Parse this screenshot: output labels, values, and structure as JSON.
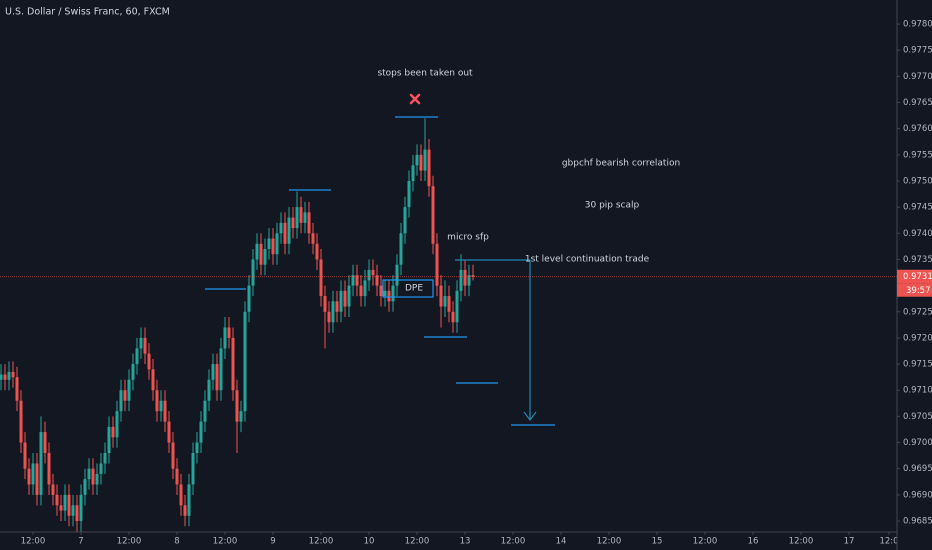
{
  "chart_data": {
    "type": "candlestick",
    "title": "U.S. Dollar / Swiss Franc, 60, FXCM",
    "up_color": "#26a69a",
    "down_color": "#ef5350",
    "candles": [
      [
        0.9712,
        0.9715,
        0.971,
        0.9713
      ],
      [
        0.9713,
        0.9715,
        0.971,
        0.9712
      ],
      [
        0.9712,
        0.97155,
        0.971,
        0.97135
      ],
      [
        0.97135,
        0.97155,
        0.97105,
        0.97125
      ],
      [
        0.97125,
        0.97145,
        0.9706,
        0.9708
      ],
      [
        0.9708,
        0.971,
        0.9698,
        0.97
      ],
      [
        0.97,
        0.9702,
        0.9693,
        0.9695
      ],
      [
        0.9695,
        0.9697,
        0.969,
        0.9692
      ],
      [
        0.9692,
        0.9698,
        0.969,
        0.9696
      ],
      [
        0.9696,
        0.9698,
        0.9688,
        0.969
      ],
      [
        0.969,
        0.9705,
        0.9688,
        0.9702
      ],
      [
        0.9702,
        0.9704,
        0.9696,
        0.9698
      ],
      [
        0.9698,
        0.97,
        0.969,
        0.9692
      ],
      [
        0.9692,
        0.9694,
        0.9688,
        0.969
      ],
      [
        0.969,
        0.9692,
        0.9686,
        0.9688
      ],
      [
        0.9688,
        0.969,
        0.9685,
        0.9687
      ],
      [
        0.9687,
        0.9692,
        0.9685,
        0.969
      ],
      [
        0.969,
        0.9692,
        0.9684,
        0.9686
      ],
      [
        0.9686,
        0.969,
        0.9684,
        0.9688
      ],
      [
        0.9688,
        0.969,
        0.9683,
        0.9685
      ],
      [
        0.9685,
        0.9692,
        0.9683,
        0.969
      ],
      [
        0.969,
        0.9695,
        0.9688,
        0.9693
      ],
      [
        0.9693,
        0.9697,
        0.9691,
        0.9695
      ],
      [
        0.9695,
        0.9697,
        0.969,
        0.9692
      ],
      [
        0.9692,
        0.9696,
        0.969,
        0.9694
      ],
      [
        0.9694,
        0.9698,
        0.9692,
        0.9696
      ],
      [
        0.9696,
        0.97,
        0.9694,
        0.9698
      ],
      [
        0.9698,
        0.9705,
        0.9696,
        0.9703
      ],
      [
        0.9703,
        0.9705,
        0.9699,
        0.9701
      ],
      [
        0.9701,
        0.9708,
        0.9699,
        0.9706
      ],
      [
        0.9706,
        0.9712,
        0.9704,
        0.971
      ],
      [
        0.971,
        0.9712,
        0.9706,
        0.9708
      ],
      [
        0.9708,
        0.9714,
        0.9706,
        0.9712
      ],
      [
        0.9712,
        0.9717,
        0.971,
        0.9715
      ],
      [
        0.9715,
        0.972,
        0.9713,
        0.9718
      ],
      [
        0.9718,
        0.9722,
        0.9716,
        0.972
      ],
      [
        0.972,
        0.9722,
        0.9715,
        0.9717
      ],
      [
        0.9717,
        0.9719,
        0.9712,
        0.9714
      ],
      [
        0.9714,
        0.9716,
        0.9708,
        0.971
      ],
      [
        0.971,
        0.9712,
        0.9704,
        0.9706
      ],
      [
        0.9706,
        0.971,
        0.9704,
        0.9708
      ],
      [
        0.9708,
        0.971,
        0.9702,
        0.9704
      ],
      [
        0.9704,
        0.9706,
        0.9698,
        0.97
      ],
      [
        0.97,
        0.9702,
        0.9693,
        0.9695
      ],
      [
        0.9695,
        0.9697,
        0.969,
        0.9692
      ],
      [
        0.9692,
        0.9694,
        0.9686,
        0.9688
      ],
      [
        0.9688,
        0.969,
        0.9684,
        0.9686
      ],
      [
        0.9686,
        0.9694,
        0.9684,
        0.9692
      ],
      [
        0.9692,
        0.97,
        0.969,
        0.9698
      ],
      [
        0.9698,
        0.9702,
        0.9696,
        0.97
      ],
      [
        0.97,
        0.9706,
        0.9698,
        0.9704
      ],
      [
        0.9704,
        0.971,
        0.9702,
        0.9708
      ],
      [
        0.9708,
        0.9714,
        0.9706,
        0.9712
      ],
      [
        0.9712,
        0.9717,
        0.971,
        0.9715
      ],
      [
        0.9715,
        0.9717,
        0.9708,
        0.971
      ],
      [
        0.971,
        0.972,
        0.9708,
        0.9718
      ],
      [
        0.9718,
        0.9724,
        0.9716,
        0.9722
      ],
      [
        0.9722,
        0.9724,
        0.9718,
        0.972
      ],
      [
        0.972,
        0.9722,
        0.9708,
        0.971
      ],
      [
        0.971,
        0.9712,
        0.9698,
        0.9704
      ],
      [
        0.9704,
        0.9708,
        0.9702,
        0.9706
      ],
      [
        0.9706,
        0.9727,
        0.9704,
        0.9725
      ],
      [
        0.9725,
        0.9732,
        0.9723,
        0.973
      ],
      [
        0.973,
        0.9737,
        0.9728,
        0.9735
      ],
      [
        0.9735,
        0.974,
        0.9733,
        0.9738
      ],
      [
        0.9738,
        0.974,
        0.9732,
        0.9734
      ],
      [
        0.9734,
        0.9739,
        0.9732,
        0.9737
      ],
      [
        0.9737,
        0.9741,
        0.9735,
        0.9739
      ],
      [
        0.9739,
        0.9741,
        0.9734,
        0.9736
      ],
      [
        0.9736,
        0.9742,
        0.9734,
        0.974
      ],
      [
        0.974,
        0.9744,
        0.9738,
        0.9742
      ],
      [
        0.9742,
        0.9744,
        0.9736,
        0.9738
      ],
      [
        0.9738,
        0.9745,
        0.9736,
        0.9743
      ],
      [
        0.9743,
        0.9745,
        0.9739,
        0.9741
      ],
      [
        0.9741,
        0.9748,
        0.9739,
        0.9745
      ],
      [
        0.9745,
        0.9747,
        0.974,
        0.9742
      ],
      [
        0.9742,
        0.9746,
        0.974,
        0.9744
      ],
      [
        0.9744,
        0.9746,
        0.9738,
        0.974
      ],
      [
        0.974,
        0.9742,
        0.9736,
        0.9738
      ],
      [
        0.9738,
        0.974,
        0.9733,
        0.9735
      ],
      [
        0.9735,
        0.9737,
        0.9726,
        0.9728
      ],
      [
        0.9728,
        0.973,
        0.9718,
        0.9725
      ],
      [
        0.9725,
        0.9727,
        0.9721,
        0.9723
      ],
      [
        0.9723,
        0.9729,
        0.9721,
        0.9727
      ],
      [
        0.9727,
        0.9729,
        0.9723,
        0.9725
      ],
      [
        0.9725,
        0.9731,
        0.9723,
        0.9729
      ],
      [
        0.9729,
        0.9731,
        0.9724,
        0.9726
      ],
      [
        0.9726,
        0.9732,
        0.9724,
        0.973
      ],
      [
        0.973,
        0.9734,
        0.9728,
        0.9732
      ],
      [
        0.9732,
        0.9734,
        0.9728,
        0.973
      ],
      [
        0.973,
        0.9732,
        0.9726,
        0.9728
      ],
      [
        0.9728,
        0.9733,
        0.9726,
        0.9731
      ],
      [
        0.9731,
        0.9735,
        0.9729,
        0.9733
      ],
      [
        0.9733,
        0.9735,
        0.973,
        0.9732
      ],
      [
        0.9732,
        0.9734,
        0.9728,
        0.973
      ],
      [
        0.973,
        0.9732,
        0.9726,
        0.9728
      ],
      [
        0.9728,
        0.9731,
        0.9726,
        0.9729
      ],
      [
        0.9729,
        0.9731,
        0.9725,
        0.9727
      ],
      [
        0.9727,
        0.9732,
        0.9725,
        0.973
      ],
      [
        0.973,
        0.9736,
        0.9728,
        0.9734
      ],
      [
        0.9734,
        0.9742,
        0.9732,
        0.974
      ],
      [
        0.974,
        0.9747,
        0.9738,
        0.9745
      ],
      [
        0.9745,
        0.9752,
        0.9743,
        0.975
      ],
      [
        0.975,
        0.9755,
        0.9748,
        0.9753
      ],
      [
        0.9753,
        0.9757,
        0.9751,
        0.9755
      ],
      [
        0.9755,
        0.9757,
        0.975,
        0.9752
      ],
      [
        0.9752,
        0.9762,
        0.975,
        0.9756
      ],
      [
        0.9756,
        0.9758,
        0.9747,
        0.9749
      ],
      [
        0.9749,
        0.9751,
        0.9736,
        0.9738
      ],
      [
        0.9738,
        0.974,
        0.9728,
        0.973
      ],
      [
        0.973,
        0.9732,
        0.9722,
        0.9726
      ],
      [
        0.9726,
        0.9731,
        0.9724,
        0.9728
      ],
      [
        0.9728,
        0.973,
        0.9723,
        0.9725
      ],
      [
        0.9725,
        0.9727,
        0.9721,
        0.9723
      ],
      [
        0.9723,
        0.9731,
        0.9721,
        0.9729
      ],
      [
        0.9729,
        0.9736,
        0.9727,
        0.9733
      ],
      [
        0.9733,
        0.9735,
        0.9728,
        0.973
      ],
      [
        0.973,
        0.9734,
        0.9728,
        0.9732
      ],
      [
        0.9732,
        0.9734,
        0.9731,
        0.97317
      ]
    ],
    "xlim": [
      -0.25,
      224
    ],
    "xticks": [
      {
        "value": 8,
        "label": "12:00"
      },
      {
        "value": 20,
        "label": "7"
      },
      {
        "value": 32,
        "label": "12:00"
      },
      {
        "value": 44,
        "label": "8"
      },
      {
        "value": 56,
        "label": "12:00"
      },
      {
        "value": 68,
        "label": "9"
      },
      {
        "value": 80,
        "label": "12:00"
      },
      {
        "value": 92,
        "label": "10"
      },
      {
        "value": 104,
        "label": "12:00"
      },
      {
        "value": 116,
        "label": "13"
      },
      {
        "value": 128,
        "label": "12:00"
      },
      {
        "value": 140,
        "label": "14"
      },
      {
        "value": 152,
        "label": "12:00"
      },
      {
        "value": 164,
        "label": "15"
      },
      {
        "value": 176,
        "label": "12:00"
      },
      {
        "value": 188,
        "label": "16"
      },
      {
        "value": 200,
        "label": "12:00"
      },
      {
        "value": 212,
        "label": "17"
      },
      {
        "value": 222,
        "label": "12:0"
      }
    ],
    "ylim": [
      0.96829,
      0.97846
    ],
    "yticks": [
      {
        "value": 0.978,
        "label": "0.97800"
      },
      {
        "value": 0.9775,
        "label": "0.97750"
      },
      {
        "value": 0.977,
        "label": "0.97700"
      },
      {
        "value": 0.9765,
        "label": "0.97650"
      },
      {
        "value": 0.976,
        "label": "0.97600"
      },
      {
        "value": 0.9755,
        "label": "0.97550"
      },
      {
        "value": 0.975,
        "label": "0.97500"
      },
      {
        "value": 0.9745,
        "label": "0.97450"
      },
      {
        "value": 0.974,
        "label": "0.97400"
      },
      {
        "value": 0.9735,
        "label": "0.97350"
      },
      {
        "value": 0.973,
        "label": "0.97300"
      },
      {
        "value": 0.9725,
        "label": "0.97250"
      },
      {
        "value": 0.972,
        "label": "0.97200"
      },
      {
        "value": 0.9715,
        "label": "0.97150"
      },
      {
        "value": 0.971,
        "label": "0.97100"
      },
      {
        "value": 0.9705,
        "label": "0.97050"
      },
      {
        "value": 0.97,
        "label": "0.97000"
      },
      {
        "value": 0.9695,
        "label": "0.96950"
      },
      {
        "value": 0.969,
        "label": "0.96900"
      },
      {
        "value": 0.9685,
        "label": "0.96850"
      }
    ],
    "annotations": [
      "stops been taken out",
      "gbpchf bearish correlation",
      "30 pip scalp",
      "micro sfp",
      "1st level continuation trade",
      "DPE"
    ],
    "current_price": {
      "value": 0.97317,
      "label": "0.97317"
    },
    "countdown": "39:57"
  }
}
